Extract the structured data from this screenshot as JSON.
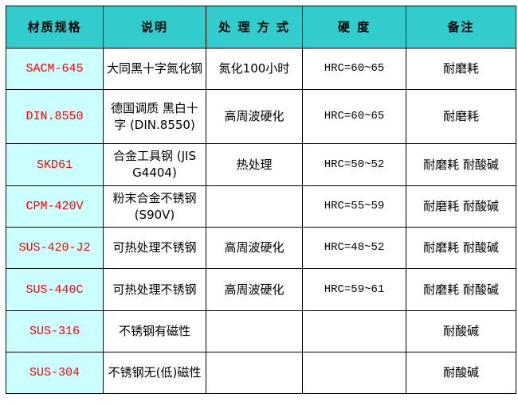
{
  "colors": {
    "header_bg": "#33cccc",
    "spec_col_bg": "#ccffff",
    "spec_text": "#ff0000"
  },
  "headers": [
    "材质规格",
    "说明",
    "处 理 方 式",
    "硬 度",
    "备注"
  ],
  "rows": [
    {
      "spec": "SACM-645",
      "desc": "大同黑十字氮化钢",
      "treatment": "氮化100小时",
      "hardness": "HRC=60~65",
      "note": "耐磨耗"
    },
    {
      "spec": "DIN.8550",
      "desc": "德国调质 黑白十字 (DIN.8550)",
      "treatment": "高周波硬化",
      "hardness": "HRC=60~65",
      "note": "耐磨耗"
    },
    {
      "spec": "SKD61",
      "desc": "合金工具钢 (JIS G4404)",
      "treatment": "热处理",
      "hardness": "HRC=50~52",
      "note": "耐磨耗 耐酸碱"
    },
    {
      "spec": "CPM-420V",
      "desc": "粉末合金不锈钢(S90V)",
      "treatment": "",
      "hardness": "HRC=55~59",
      "note": "耐磨耗 耐酸碱"
    },
    {
      "spec": "SUS-420-J2",
      "desc": "可热处理不锈钢",
      "treatment": "高周波硬化",
      "hardness": "HRC=48~52",
      "note": "耐磨耗 耐酸碱"
    },
    {
      "spec": "SUS-440C",
      "desc": "可热处理不锈钢",
      "treatment": "高周波硬化",
      "hardness": "HRC=59~61",
      "note": "耐磨耗 耐酸碱"
    },
    {
      "spec": "SUS-316",
      "desc": "不锈钢有磁性",
      "treatment": "",
      "hardness": "",
      "note": "耐酸碱"
    },
    {
      "spec": "SUS-304",
      "desc": "不锈钢无(低)磁性",
      "treatment": "",
      "hardness": "",
      "note": "耐酸碱"
    }
  ]
}
